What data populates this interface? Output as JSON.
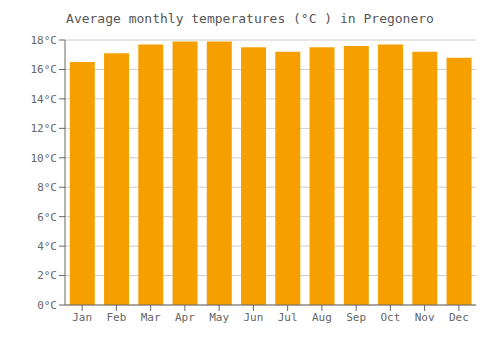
{
  "chart_data": {
    "type": "bar",
    "title": "Average monthly temperatures (°C ) in Pregonero",
    "categories": [
      "Jan",
      "Feb",
      "Mar",
      "Apr",
      "May",
      "Jun",
      "Jul",
      "Aug",
      "Sep",
      "Oct",
      "Nov",
      "Dec"
    ],
    "values": [
      16.5,
      17.1,
      17.7,
      17.9,
      17.9,
      17.5,
      17.2,
      17.5,
      17.6,
      17.7,
      17.2,
      16.8
    ],
    "color": "#F5A000",
    "ylim": [
      0,
      18
    ],
    "yticks": [
      {
        "value": 0,
        "label": "0°C"
      },
      {
        "value": 2,
        "label": "2°C"
      },
      {
        "value": 4,
        "label": "4°C"
      },
      {
        "value": 6,
        "label": "6°C"
      },
      {
        "value": 8,
        "label": "8°C"
      },
      {
        "value": 10,
        "label": "10°C"
      },
      {
        "value": 12,
        "label": "12°C"
      },
      {
        "value": 14,
        "label": "14°C"
      },
      {
        "value": 16,
        "label": "16°C"
      },
      {
        "value": 18,
        "label": "18°C"
      }
    ],
    "grid": true
  }
}
